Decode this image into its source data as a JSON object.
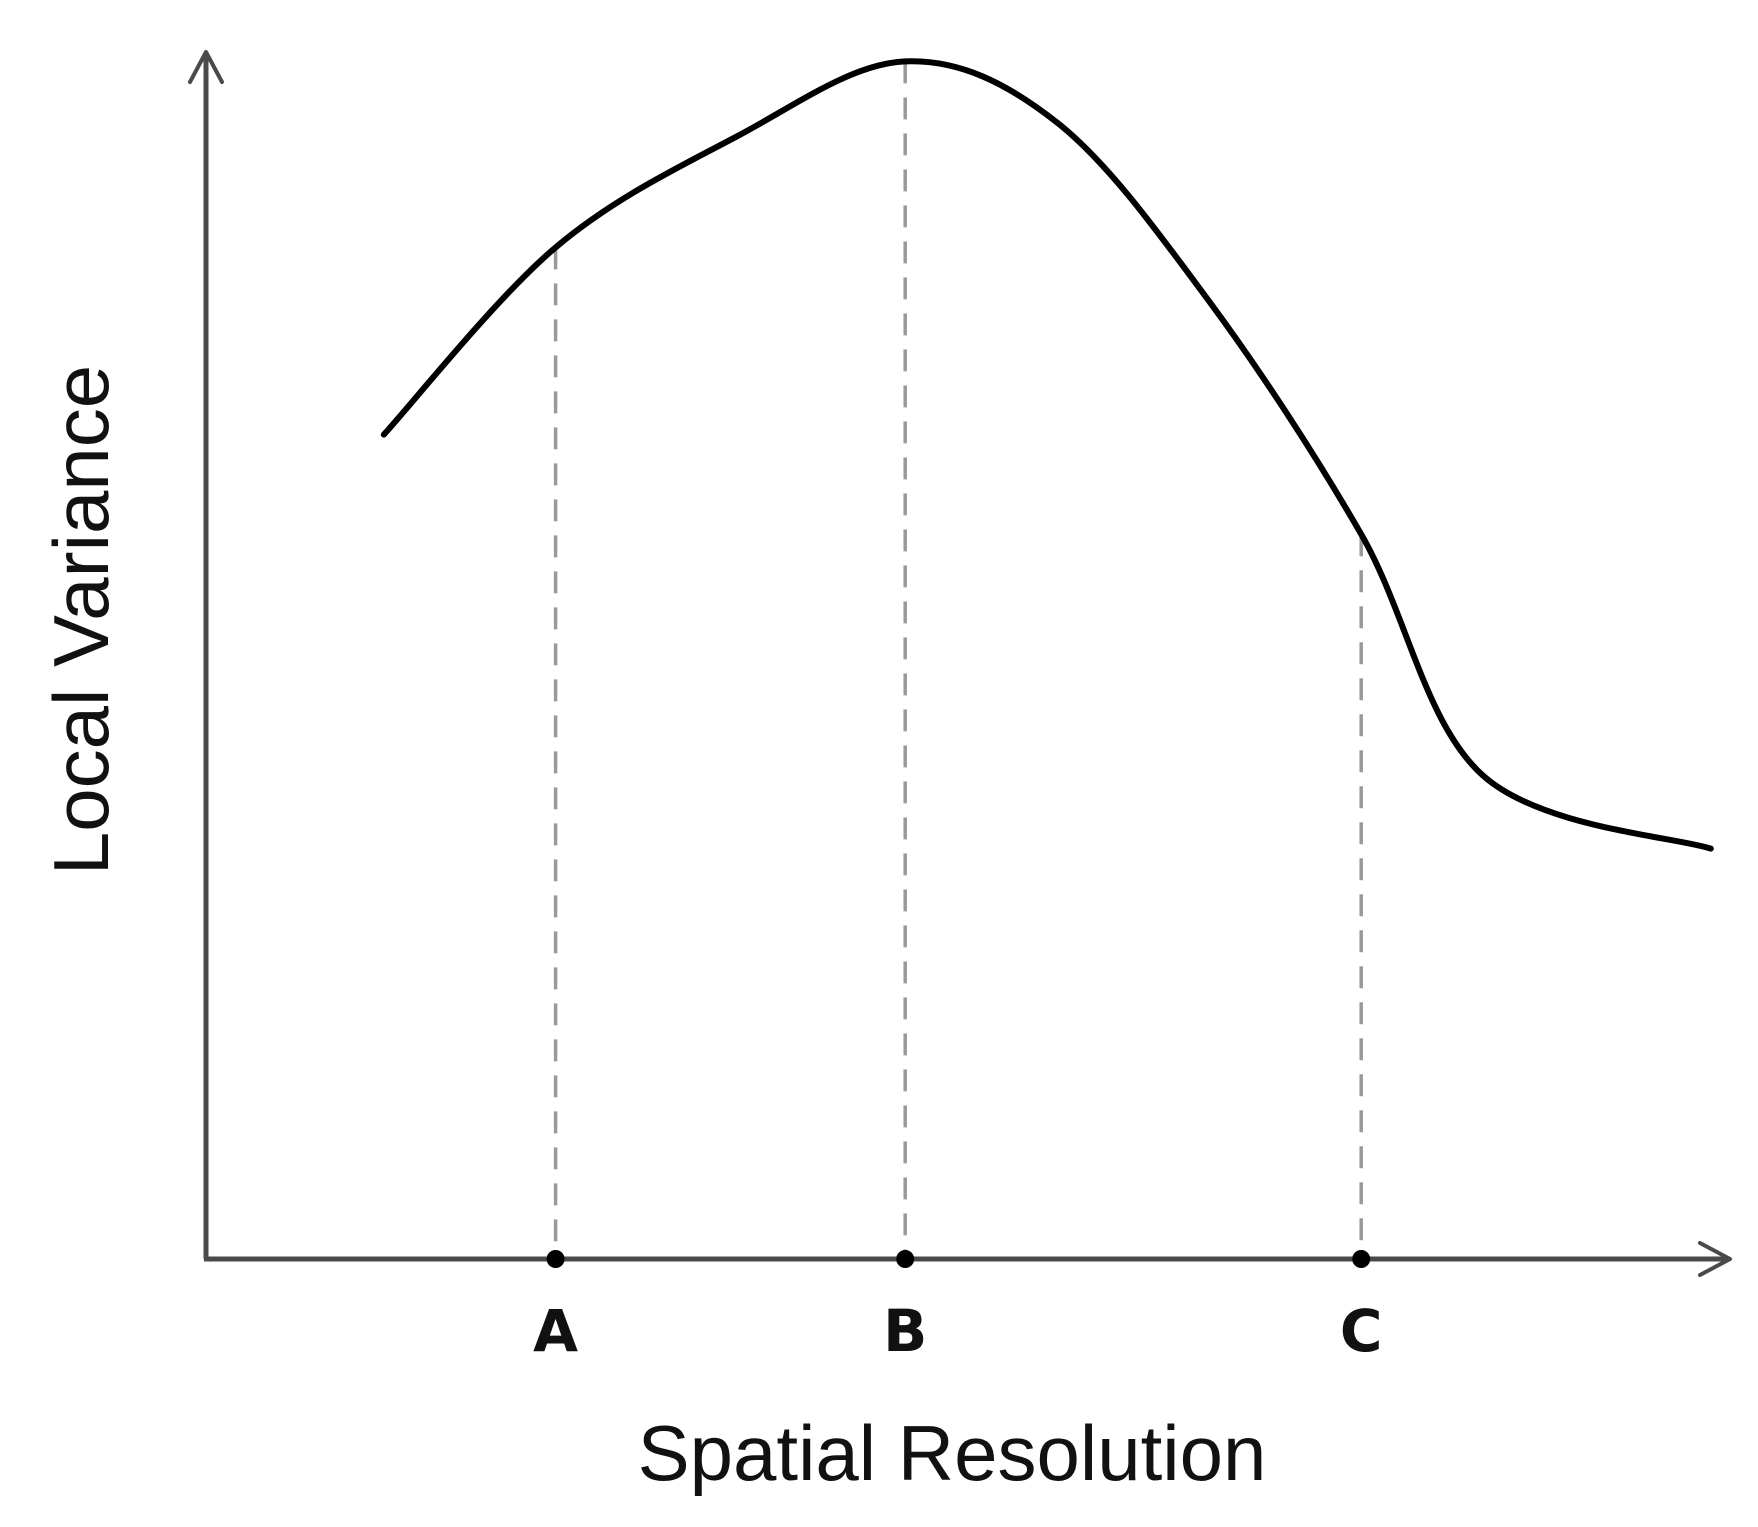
{
  "chart_data": {
    "type": "line",
    "title": "",
    "xlabel": "Spatial Resolution",
    "ylabel": "Local Variance",
    "grid": false,
    "legend": "none",
    "xlim": [
      0,
      10
    ],
    "ylim": [
      0,
      10
    ],
    "colors": {
      "curve": "#000000",
      "axis": "#4a4a4a",
      "guide": "#9a9a9a"
    },
    "series": [
      {
        "x": [
          1.17,
          2.3,
          3.5,
          4.6,
          5.6,
          6.6,
          7.6,
          8.4,
          9.9
        ],
        "y": [
          6.87,
          8.43,
          9.36,
          9.98,
          9.47,
          7.98,
          6.04,
          4.03,
          3.42
        ]
      }
    ],
    "markers": [
      {
        "label": "A",
        "x": 2.3,
        "y": 8.43
      },
      {
        "label": "B",
        "x": 4.6,
        "y": 9.98
      },
      {
        "label": "C",
        "x": 7.6,
        "y": 6.04
      }
    ]
  }
}
